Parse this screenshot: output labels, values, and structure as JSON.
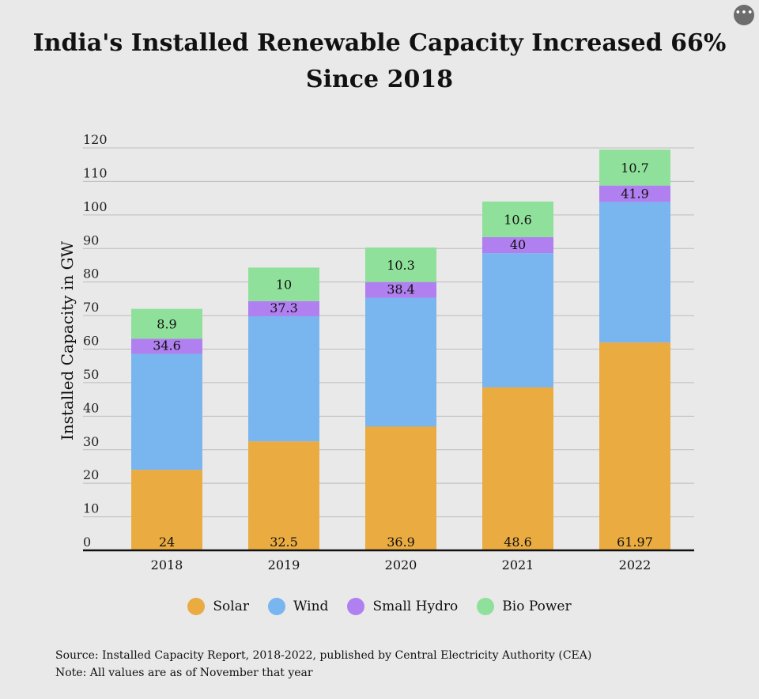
{
  "menu": {
    "icon": "more-horizontal-icon",
    "glyph": "•••"
  },
  "title_line1": "India's Installed Renewable Capacity Increased 66%",
  "title_line2": "Since 2018",
  "source": "Source: Installed Capacity Report, 2018-2022, published by Central Electricity Authority (CEA)",
  "note": "Note: All values are as of November that year",
  "chart_data": {
    "type": "bar",
    "stacked": true,
    "categories": [
      "2018",
      "2019",
      "2020",
      "2021",
      "2022"
    ],
    "ylabel": "Installed Capacity in GW",
    "ylim": [
      0,
      120
    ],
    "yticks": [
      0,
      10,
      20,
      30,
      40,
      50,
      60,
      70,
      80,
      90,
      100,
      110,
      120
    ],
    "grid": true,
    "legend_position": "bottom",
    "series": [
      {
        "name": "Solar",
        "color": "#eaab41",
        "values": [
          24,
          32.5,
          36.9,
          48.6,
          61.97
        ],
        "labels": [
          "24",
          "32.5",
          "36.9",
          "48.6",
          "61.97"
        ],
        "label_pos": "bottom"
      },
      {
        "name": "Wind",
        "color": "#79b5ee",
        "values": [
          34.6,
          37.3,
          38.4,
          40,
          41.9
        ],
        "labels": [
          "34.6",
          "37.3",
          "38.4",
          "40",
          "41.9"
        ],
        "label_pos": "top"
      },
      {
        "name": "Small Hydro",
        "color": "#b07ff0",
        "values": [
          4.5,
          4.5,
          4.7,
          4.8,
          4.9
        ],
        "labels": [
          null,
          null,
          null,
          null,
          null
        ],
        "label_pos": "none"
      },
      {
        "name": "Bio Power",
        "color": "#8fe09a",
        "values": [
          8.9,
          10,
          10.3,
          10.6,
          10.7
        ],
        "labels": [
          "8.9",
          "10",
          "10.3",
          "10.6",
          "10.7"
        ],
        "label_pos": "middle"
      }
    ]
  }
}
